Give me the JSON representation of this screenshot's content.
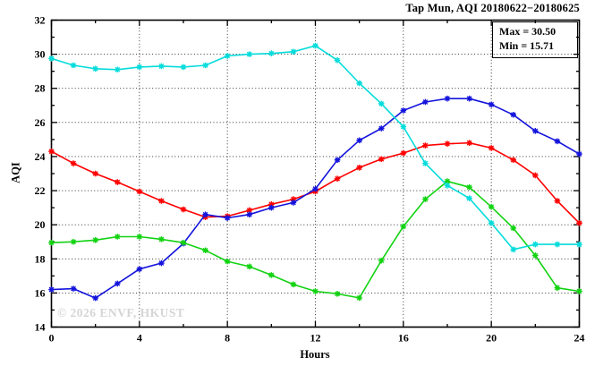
{
  "chart_data": {
    "type": "line",
    "title": "Tap Mun, AQI 20180622−20180625",
    "xlabel": "Hours",
    "ylabel": "AQI",
    "xlim": [
      0,
      24
    ],
    "ylim": [
      14,
      32
    ],
    "x_major_tick_step": 4,
    "x_minor_tick_step": 2,
    "y_major_tick_step": 2,
    "y_minor_tick_step": 1,
    "grid": {
      "x_lines": [
        4,
        8,
        12,
        16,
        20
      ],
      "y_lines": [
        16,
        18,
        20,
        22,
        24,
        26,
        28,
        30
      ],
      "style": "dotted"
    },
    "legend": {
      "position": "top-right",
      "lines": [
        "Max = 30.50",
        "Min = 15.71"
      ]
    },
    "annotations": {
      "watermark": "© 2026 ENVF, HKUST"
    },
    "x": [
      0,
      1,
      2,
      3,
      4,
      5,
      6,
      7,
      8,
      9,
      10,
      11,
      12,
      13,
      14,
      15,
      16,
      17,
      18,
      19,
      20,
      21,
      22,
      23,
      24
    ],
    "series": [
      {
        "name": "series-red",
        "color": "#ff0000",
        "marker": "asterisk",
        "values": [
          24.3,
          23.6,
          23.0,
          22.5,
          21.95,
          21.4,
          20.9,
          20.45,
          20.5,
          20.85,
          21.2,
          21.5,
          21.95,
          22.7,
          23.35,
          23.85,
          24.2,
          24.65,
          24.75,
          24.8,
          24.5,
          23.8,
          22.9,
          21.4,
          20.1
        ]
      },
      {
        "name": "series-blue",
        "color": "#1414dd",
        "marker": "asterisk",
        "values": [
          16.2,
          16.25,
          15.7,
          16.55,
          17.4,
          17.75,
          18.9,
          20.6,
          20.4,
          20.6,
          21.0,
          21.3,
          22.1,
          23.8,
          24.95,
          25.65,
          26.7,
          27.2,
          27.4,
          27.4,
          27.05,
          26.45,
          25.5,
          24.9,
          24.15
        ]
      },
      {
        "name": "series-green",
        "color": "#12d312",
        "marker": "asterisk",
        "values": [
          18.95,
          19.0,
          19.1,
          19.3,
          19.3,
          19.15,
          18.95,
          18.5,
          17.85,
          17.55,
          17.05,
          16.5,
          16.1,
          15.95,
          15.71,
          17.9,
          19.9,
          21.5,
          22.55,
          22.2,
          21.05,
          19.8,
          18.2,
          16.3,
          16.1
        ]
      },
      {
        "name": "series-cyan",
        "color": "#05dcdc",
        "marker": "asterisk",
        "values": [
          29.75,
          29.35,
          29.15,
          29.1,
          29.25,
          29.3,
          29.25,
          29.35,
          29.9,
          30.0,
          30.05,
          30.15,
          30.5,
          29.65,
          28.3,
          27.1,
          25.75,
          23.6,
          22.3,
          21.55,
          20.1,
          18.55,
          18.85,
          18.85,
          18.85
        ]
      }
    ]
  }
}
